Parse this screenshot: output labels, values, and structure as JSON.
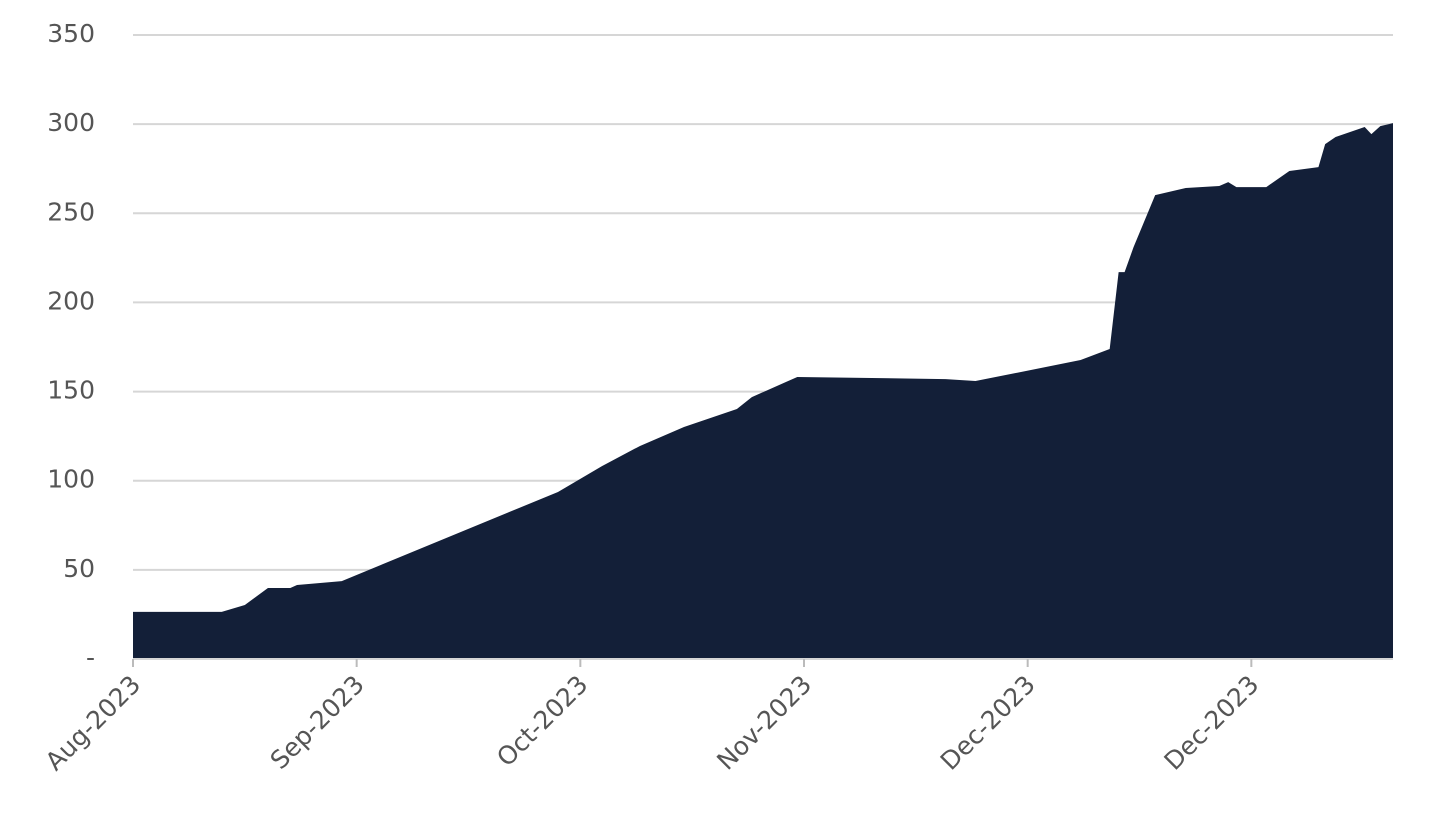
{
  "chart_data": {
    "type": "area",
    "color": "#131f38",
    "grid": true,
    "x": [
      0,
      11.9,
      15,
      18.1,
      21.1,
      22,
      25.1,
      28,
      57,
      62.9,
      68,
      73.9,
      81,
      83,
      89.1,
      109,
      113,
      127.1,
      131,
      132.2,
      133,
      134.2,
      137.1,
      141.2,
      145.7,
      146.9,
      148,
      152,
      155.1,
      159,
      159.9,
      161.3,
      165.2,
      166.1,
      167.3,
      169
    ],
    "values": [
      26.4,
      26.4,
      30.3,
      39.8,
      39.8,
      41.5,
      42.6,
      43.7,
      93.7,
      108.2,
      119.5,
      130.1,
      140.2,
      146.9,
      158.2,
      157,
      155.9,
      167.7,
      173.9,
      217,
      217,
      231,
      260.2,
      264.2,
      265.3,
      267.5,
      264.7,
      264.7,
      273.7,
      275.9,
      288.8,
      292.8,
      298.4,
      294.4,
      298.9,
      300.6
    ],
    "xlim": [
      0,
      169
    ],
    "xticks": [
      {
        "value": 0,
        "label": "Aug-2023"
      },
      {
        "value": 30,
        "label": "Sep-2023"
      },
      {
        "value": 60,
        "label": "Oct-2023"
      },
      {
        "value": 90,
        "label": "Nov-2023"
      },
      {
        "value": 120,
        "label": "Dec-2023"
      },
      {
        "value": 150,
        "label": "Dec-2023"
      }
    ],
    "ylim": [
      0,
      350
    ],
    "yticks": [
      {
        "value": 0,
        "label": "-"
      },
      50,
      100,
      150,
      200,
      250,
      300,
      350
    ]
  }
}
